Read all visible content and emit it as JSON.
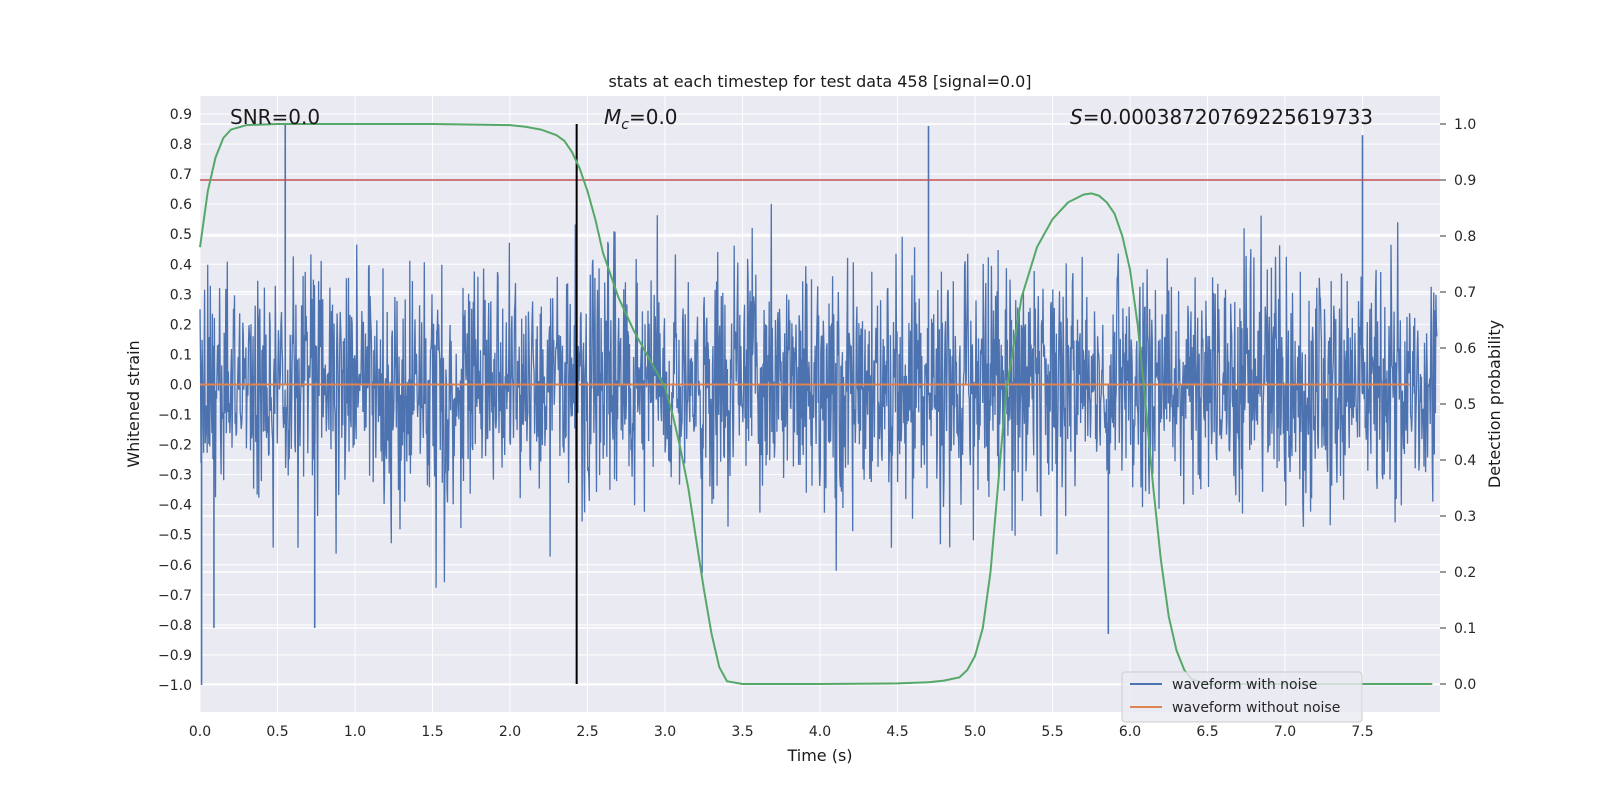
{
  "chart_data": {
    "type": "line",
    "title": "stats at each timestep for test data 458 [signal=0.0]",
    "xlabel": "Time (s)",
    "ylabel": "Whitened strain",
    "y2label": "Detection probability",
    "xlim": [
      0.0,
      8.0
    ],
    "ylim": [
      -1.09,
      0.96
    ],
    "y2lim": [
      -0.05,
      1.05
    ],
    "x_ticks": [
      "0.0",
      "0.5",
      "1.0",
      "1.5",
      "2.0",
      "2.5",
      "3.0",
      "3.5",
      "4.0",
      "4.5",
      "5.0",
      "5.5",
      "6.0",
      "6.5",
      "7.0",
      "7.5"
    ],
    "y_ticks": [
      "0.9",
      "0.8",
      "0.7",
      "0.6",
      "0.5",
      "0.4",
      "0.3",
      "0.2",
      "0.1",
      "0.0",
      "−0.1",
      "−0.2",
      "−0.3",
      "−0.4",
      "−0.5",
      "−0.6",
      "−0.7",
      "−0.8",
      "−0.9",
      "−1.0"
    ],
    "y2_ticks": [
      "1.0",
      "0.9",
      "0.8",
      "0.7",
      "0.6",
      "0.5",
      "0.4",
      "0.3",
      "0.2",
      "0.1",
      "0.0"
    ],
    "grid": true,
    "legend_position": "lower right",
    "annotations": {
      "snr": "SNR=0.0",
      "mc_symbol": "M",
      "mc_sub": "c",
      "mc_value": "=0.0",
      "s_symbol": "S",
      "s_value": "=0.0003872076922561973​3"
    },
    "vertical_marker_x": 2.43,
    "threshold_level": 0.9,
    "series": [
      {
        "name": "waveform with noise",
        "color": "#4c72b0",
        "axis": "left",
        "noise_std": 0.2,
        "peak_examples": [
          [
            0.55,
            0.87
          ],
          [
            0.01,
            -1.0
          ],
          [
            4.7,
            0.86
          ],
          [
            7.5,
            0.83
          ],
          [
            5.86,
            -0.83
          ],
          [
            0.09,
            -0.81
          ],
          [
            0.74,
            -0.81
          ]
        ]
      },
      {
        "name": "waveform without noise",
        "color": "#dd8452",
        "axis": "left",
        "x": [
          0.0,
          8.0
        ],
        "y": [
          0.0,
          0.0
        ]
      },
      {
        "name": "detection probability",
        "color": "#55a868",
        "axis": "right",
        "x": [
          0.0,
          0.05,
          0.1,
          0.15,
          0.2,
          0.3,
          0.5,
          1.0,
          1.5,
          2.0,
          2.1,
          2.2,
          2.3,
          2.35,
          2.4,
          2.45,
          2.5,
          2.55,
          2.6,
          2.7,
          2.8,
          2.9,
          3.0,
          3.05,
          3.1,
          3.15,
          3.2,
          3.25,
          3.3,
          3.35,
          3.4,
          3.5,
          4.0,
          4.5,
          4.7,
          4.8,
          4.9,
          4.95,
          5.0,
          5.05,
          5.1,
          5.15,
          5.2,
          5.3,
          5.4,
          5.5,
          5.6,
          5.7,
          5.75,
          5.8,
          5.85,
          5.9,
          5.95,
          6.0,
          6.05,
          6.1,
          6.15,
          6.2,
          6.25,
          6.3,
          6.35,
          6.4,
          6.5,
          7.0,
          7.5,
          7.95
        ],
        "y": [
          0.78,
          0.88,
          0.94,
          0.975,
          0.99,
          0.998,
          1.0,
          1.0,
          1.0,
          0.998,
          0.995,
          0.99,
          0.98,
          0.97,
          0.95,
          0.92,
          0.88,
          0.83,
          0.77,
          0.69,
          0.63,
          0.58,
          0.53,
          0.48,
          0.42,
          0.35,
          0.26,
          0.17,
          0.09,
          0.03,
          0.005,
          0.0,
          0.0,
          0.001,
          0.003,
          0.006,
          0.012,
          0.025,
          0.05,
          0.1,
          0.2,
          0.36,
          0.52,
          0.69,
          0.78,
          0.83,
          0.86,
          0.874,
          0.876,
          0.872,
          0.86,
          0.84,
          0.8,
          0.74,
          0.64,
          0.5,
          0.35,
          0.22,
          0.12,
          0.06,
          0.025,
          0.008,
          0.0,
          0.0,
          0.0,
          0.0
        ]
      }
    ]
  }
}
